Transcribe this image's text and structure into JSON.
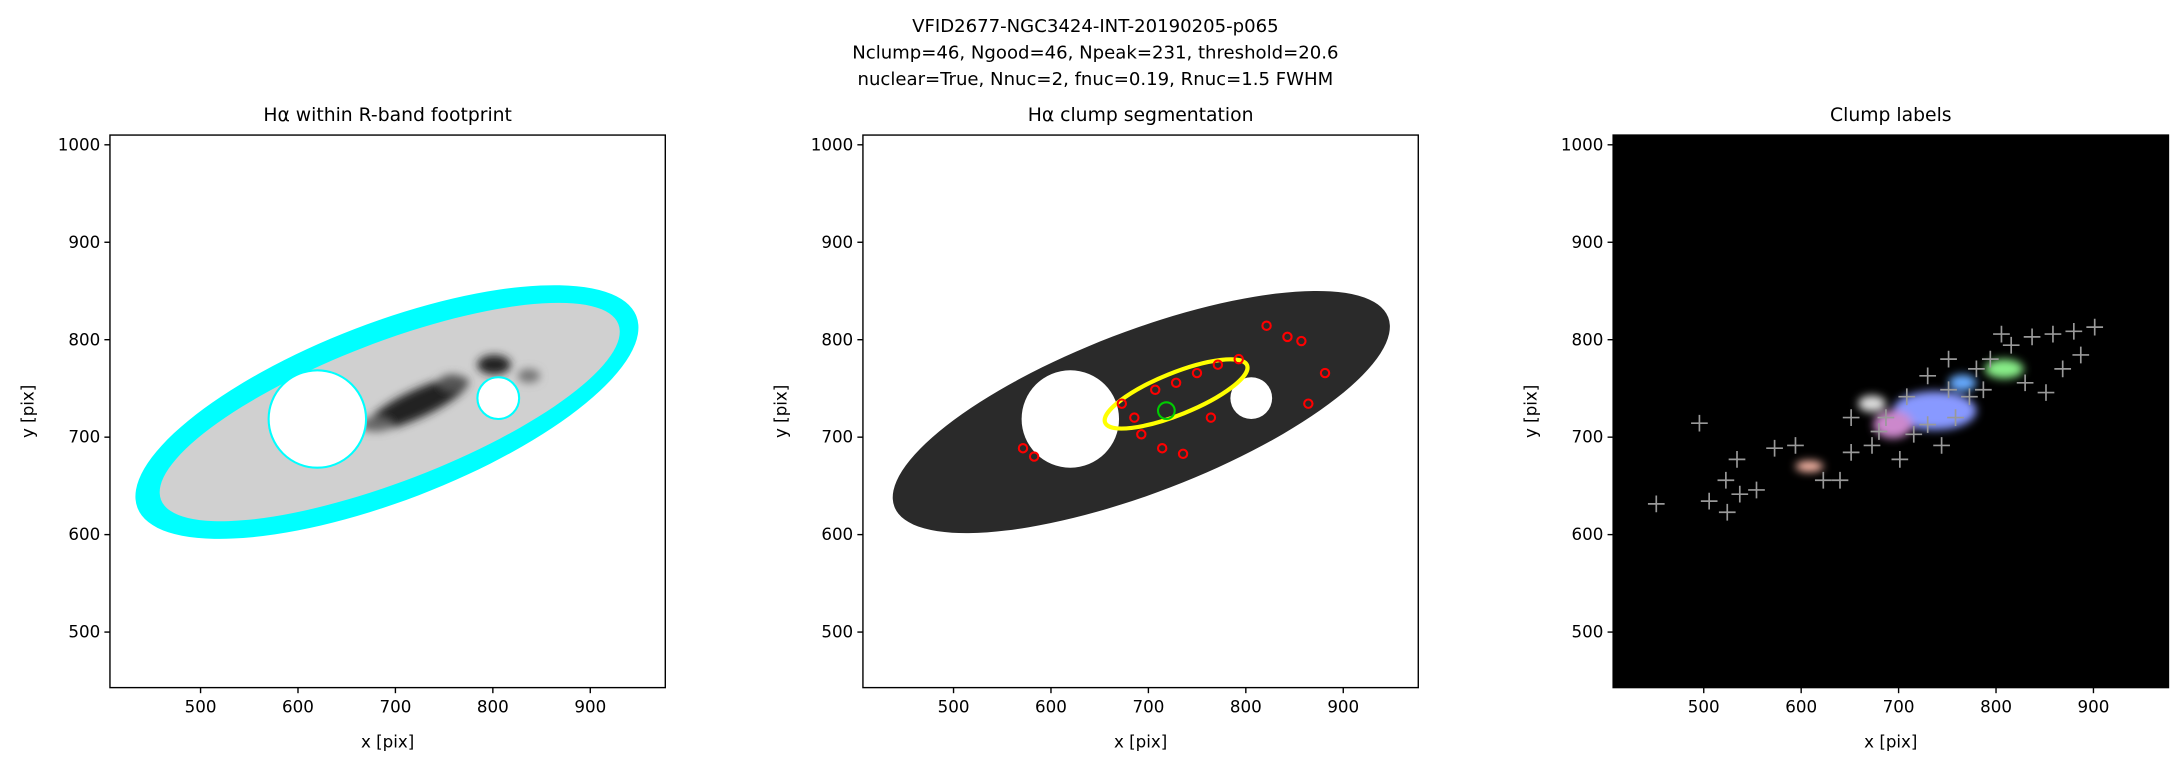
{
  "suptitle": [
    "VFID2677-NGC3424-INT-20190205-p065",
    "Nclump=46, Ngood=46, Npeak=231, threshold=20.6",
    "nuclear=True, Nnuc=2, fnuc=0.19, Rnuc=1.5 FWHM"
  ],
  "chart_data": [
    {
      "type": "image",
      "title": "Hα within R-band footprint",
      "xlabel": "x [pix]",
      "ylabel": "y [pix]",
      "xlim": [
        407,
        977
      ],
      "ylim": [
        443,
        1010
      ],
      "xticks": [
        500,
        600,
        700,
        800,
        900
      ],
      "yticks": [
        500,
        600,
        700,
        800,
        900,
        1000
      ]
    },
    {
      "type": "image",
      "title": "Hα clump segmentation",
      "xlabel": "x [pix]",
      "ylabel": "y [pix]",
      "xlim": [
        407,
        977
      ],
      "ylim": [
        443,
        1010
      ],
      "xticks": [
        500,
        600,
        700,
        800,
        900
      ],
      "yticks": [
        500,
        600,
        700,
        800,
        900,
        1000
      ]
    },
    {
      "type": "image",
      "title": "Clump labels",
      "xlabel": "x [pix]",
      "ylabel": "y [pix]",
      "xlim": [
        407,
        977
      ],
      "ylim": [
        443,
        1010
      ],
      "xticks": [
        500,
        600,
        700,
        800,
        900
      ],
      "yticks": [
        500,
        600,
        700,
        800,
        900,
        1000
      ]
    }
  ]
}
